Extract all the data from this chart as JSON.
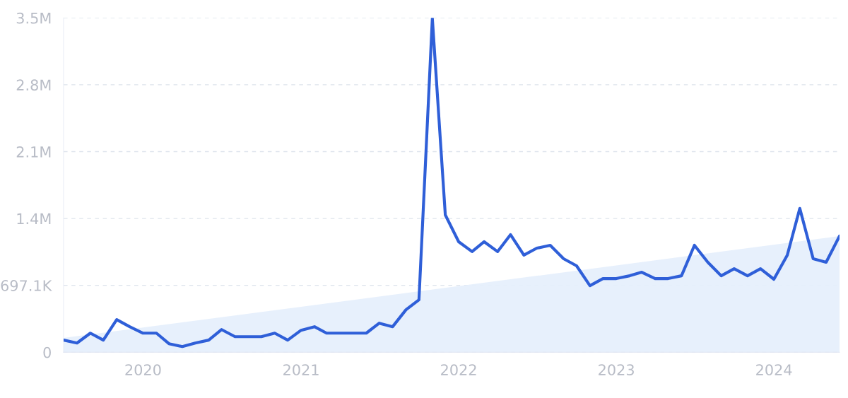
{
  "chart_data": {
    "type": "line",
    "x": [
      "2019-07",
      "2019-08",
      "2019-09",
      "2019-10",
      "2019-11",
      "2019-12",
      "2020-01",
      "2020-02",
      "2020-03",
      "2020-04",
      "2020-05",
      "2020-06",
      "2020-07",
      "2020-08",
      "2020-09",
      "2020-10",
      "2020-11",
      "2020-12",
      "2021-01",
      "2021-02",
      "2021-03",
      "2021-04",
      "2021-05",
      "2021-06",
      "2021-07",
      "2021-08",
      "2021-09",
      "2021-10",
      "2021-11",
      "2021-12",
      "2022-01",
      "2022-02",
      "2022-03",
      "2022-04",
      "2022-05",
      "2022-06",
      "2022-07",
      "2022-08",
      "2022-09",
      "2022-10",
      "2022-11",
      "2022-12",
      "2023-01",
      "2023-02",
      "2023-03",
      "2023-04",
      "2023-05",
      "2023-06",
      "2023-07",
      "2023-08",
      "2023-09",
      "2023-10",
      "2023-11",
      "2023-12",
      "2024-01",
      "2024-02",
      "2024-03",
      "2024-04",
      "2024-05",
      "2024-06"
    ],
    "series": [
      {
        "type": "area",
        "color": "#e4eefc",
        "x": [
          "2019-07",
          "2024-06"
        ],
        "values": [
          150000,
          1210000
        ]
      },
      {
        "color": "#2f5fd8",
        "values": [
          126000,
          96000,
          199000,
          126000,
          340000,
          266000,
          199000,
          199000,
          89000,
          59000,
          96000,
          126000,
          236000,
          162000,
          162000,
          162000,
          199000,
          126000,
          229000,
          266000,
          199000,
          199000,
          199000,
          199000,
          303000,
          266000,
          443000,
          546000,
          3480000,
          1432000,
          1152000,
          1049000,
          1152000,
          1049000,
          1226000,
          1012000,
          1085000,
          1115000,
          975000,
          901000,
          694000,
          768000,
          768000,
          797000,
          834000,
          768000,
          768000,
          797000,
          1115000,
          938000,
          797000,
          871000,
          797000,
          871000,
          761000,
          1012000,
          1499000,
          975000,
          938000,
          1211000
        ]
      }
    ],
    "xlim": [
      "2019-07",
      "2024-06"
    ],
    "xticks": [
      {
        "value": "2020-01",
        "label": "2020"
      },
      {
        "value": "2021-01",
        "label": "2021"
      },
      {
        "value": "2022-01",
        "label": "2022"
      },
      {
        "value": "2023-01",
        "label": "2023"
      },
      {
        "value": "2024-01",
        "label": "2024"
      }
    ],
    "ylim": [
      0,
      3485500
    ],
    "yticks": [
      0,
      {
        "value": 697100,
        "label": "697.1K"
      },
      {
        "value": 1394200,
        "label": "1.4M"
      },
      {
        "value": 2091300,
        "label": "2.1M"
      },
      {
        "value": 2788400,
        "label": "2.8M"
      },
      {
        "value": 3485500,
        "label": "3.5M"
      }
    ],
    "grid": "y",
    "line_style": "solid",
    "marker": "none"
  }
}
